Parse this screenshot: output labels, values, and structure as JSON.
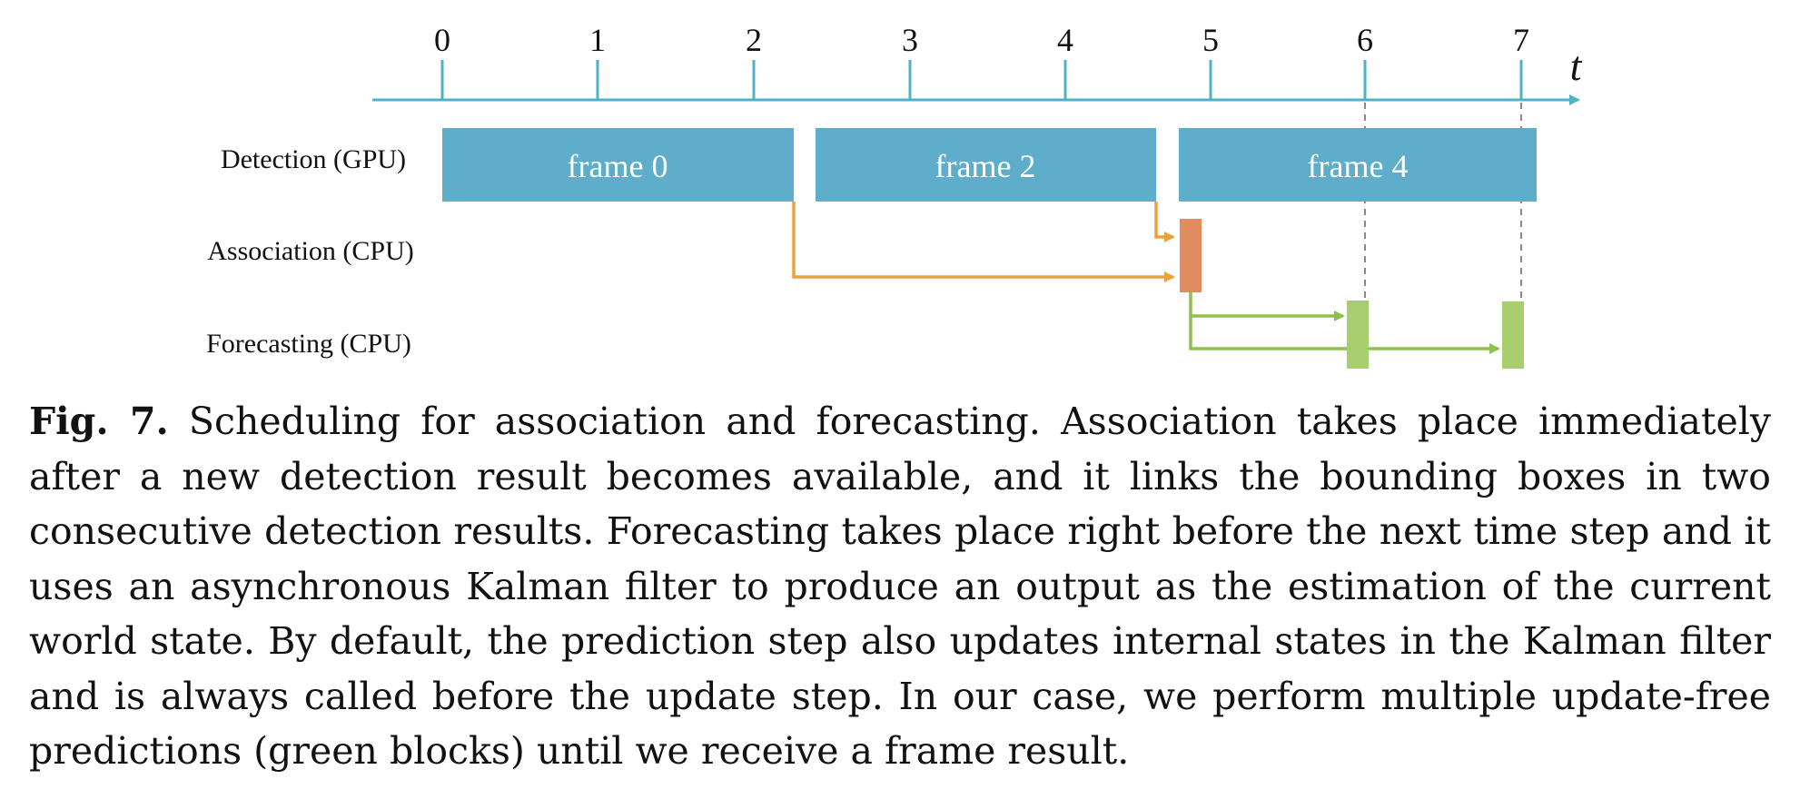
{
  "diagram": {
    "axis": {
      "ticks": [
        "0",
        "1",
        "2",
        "3",
        "4",
        "5",
        "6",
        "7"
      ],
      "variable": "t"
    },
    "rows": [
      {
        "id": "detection",
        "label": "Detection (GPU)"
      },
      {
        "id": "association",
        "label": "Association (CPU)"
      },
      {
        "id": "forecasting",
        "label": "Forecasting (CPU)"
      }
    ],
    "detection_blocks": [
      "frame 0",
      "frame 2",
      "frame 4"
    ],
    "colors": {
      "axis": "#4fb2c6",
      "detection": "#5dadcb",
      "association": "#e08b60",
      "forecasting": "#a7cf6e",
      "association_arrow": "#eaa33a",
      "forecasting_arrow": "#8dc14e",
      "guide": "#888888"
    }
  },
  "caption": {
    "label": "Fig. 7.",
    "text": "Scheduling for association and forecasting. Association takes place immediately after a new detection result becomes available, and it links the bounding boxes in two consecutive detection results. Forecasting takes place right before the next time step and it uses an asynchronous Kalman filter to produce an output as the estimation of the current world state. By default, the prediction step also updates internal states in the Kalman filter and is always called before the update step. In our case, we perform multiple update-free predictions (green blocks) until we receive a frame result."
  }
}
